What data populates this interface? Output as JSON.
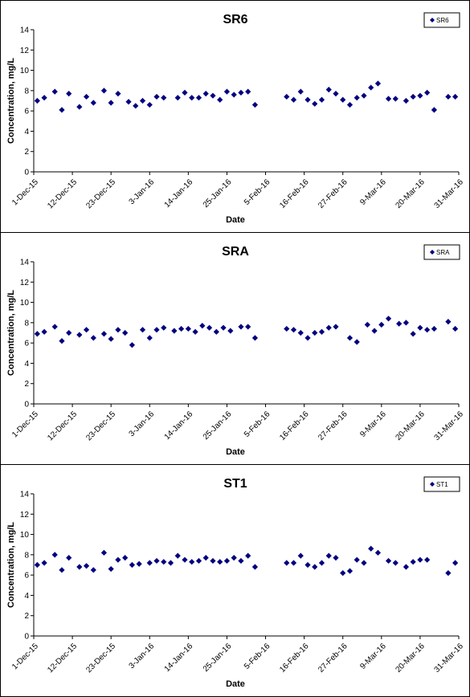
{
  "chart_data": [
    {
      "type": "scatter",
      "title": "SR6",
      "xlabel": "Date",
      "ylabel": "Concentration, mg/L",
      "legend": "SR6",
      "legend_position": "top-right",
      "ylim": [
        0,
        14
      ],
      "yticks": [
        "0",
        "2",
        "4",
        "6",
        "8",
        "10",
        "12",
        "14"
      ],
      "xticks": [
        "1-Dec-15",
        "12-Dec-15",
        "23-Dec-15",
        "3-Jan-16",
        "14-Jan-16",
        "25-Jan-16",
        "5-Feb-16",
        "16-Feb-16",
        "27-Feb-16",
        "9-Mar-16",
        "20-Mar-16",
        "31-Mar-16"
      ],
      "x": [
        "2015-12-02",
        "2015-12-04",
        "2015-12-07",
        "2015-12-09",
        "2015-12-11",
        "2015-12-14",
        "2015-12-16",
        "2015-12-18",
        "2015-12-21",
        "2015-12-23",
        "2015-12-25",
        "2015-12-28",
        "2015-12-30",
        "2016-01-01",
        "2016-01-03",
        "2016-01-05",
        "2016-01-07",
        "2016-01-11",
        "2016-01-13",
        "2016-01-15",
        "2016-01-17",
        "2016-01-19",
        "2016-01-21",
        "2016-01-23",
        "2016-01-25",
        "2016-01-27",
        "2016-01-29",
        "2016-01-31",
        "2016-02-02",
        "2016-02-11",
        "2016-02-13",
        "2016-02-15",
        "2016-02-17",
        "2016-02-19",
        "2016-02-21",
        "2016-02-23",
        "2016-02-25",
        "2016-02-27",
        "2016-02-29",
        "2016-03-02",
        "2016-03-04",
        "2016-03-06",
        "2016-03-08",
        "2016-03-11",
        "2016-03-13",
        "2016-03-16",
        "2016-03-18",
        "2016-03-20",
        "2016-03-22",
        "2016-03-24",
        "2016-03-28",
        "2016-03-30"
      ],
      "y": [
        7.0,
        7.3,
        7.9,
        6.1,
        7.7,
        6.4,
        7.4,
        6.8,
        8.0,
        6.8,
        7.7,
        6.9,
        6.5,
        7.0,
        6.6,
        7.4,
        7.3,
        7.3,
        7.8,
        7.3,
        7.3,
        7.7,
        7.5,
        7.1,
        7.9,
        7.6,
        7.8,
        7.9,
        6.6,
        7.4,
        7.1,
        7.9,
        7.1,
        6.7,
        7.1,
        8.1,
        7.7,
        7.1,
        6.6,
        7.3,
        7.5,
        8.3,
        8.7,
        7.2,
        7.2,
        7.0,
        7.4,
        7.5,
        7.8,
        6.1,
        7.4,
        7.4
      ]
    },
    {
      "type": "scatter",
      "title": "SRA",
      "xlabel": "Date",
      "ylabel": "Concentration, mg/L",
      "legend": "SRA",
      "legend_position": "top-right",
      "ylim": [
        0,
        14
      ],
      "yticks": [
        "0",
        "2",
        "4",
        "6",
        "8",
        "10",
        "12",
        "14"
      ],
      "xticks": [
        "1-Dec-15",
        "12-Dec-15",
        "23-Dec-15",
        "3-Jan-16",
        "14-Jan-16",
        "25-Jan-16",
        "5-Feb-16",
        "16-Feb-16",
        "27-Feb-16",
        "9-Mar-16",
        "20-Mar-16",
        "31-Mar-16"
      ],
      "x": [
        "2015-12-02",
        "2015-12-04",
        "2015-12-07",
        "2015-12-09",
        "2015-12-11",
        "2015-12-14",
        "2015-12-16",
        "2015-12-18",
        "2015-12-21",
        "2015-12-23",
        "2015-12-25",
        "2015-12-27",
        "2015-12-29",
        "2016-01-01",
        "2016-01-03",
        "2016-01-05",
        "2016-01-07",
        "2016-01-10",
        "2016-01-12",
        "2016-01-14",
        "2016-01-16",
        "2016-01-18",
        "2016-01-20",
        "2016-01-22",
        "2016-01-24",
        "2016-01-26",
        "2016-01-29",
        "2016-01-31",
        "2016-02-02",
        "2016-02-11",
        "2016-02-13",
        "2016-02-15",
        "2016-02-17",
        "2016-02-19",
        "2016-02-21",
        "2016-02-23",
        "2016-02-25",
        "2016-02-29",
        "2016-03-02",
        "2016-03-05",
        "2016-03-07",
        "2016-03-09",
        "2016-03-11",
        "2016-03-14",
        "2016-03-16",
        "2016-03-18",
        "2016-03-20",
        "2016-03-22",
        "2016-03-24",
        "2016-03-28",
        "2016-03-30"
      ],
      "y": [
        6.9,
        7.1,
        7.6,
        6.2,
        7.0,
        6.8,
        7.3,
        6.5,
        6.9,
        6.4,
        7.3,
        7.0,
        5.8,
        7.3,
        6.5,
        7.3,
        7.5,
        7.2,
        7.4,
        7.4,
        7.1,
        7.7,
        7.5,
        7.1,
        7.5,
        7.2,
        7.6,
        7.6,
        6.5,
        7.4,
        7.3,
        7.0,
        6.5,
        7.0,
        7.1,
        7.5,
        7.6,
        6.5,
        6.1,
        7.8,
        7.2,
        7.8,
        8.4,
        7.9,
        8.0,
        6.9,
        7.5,
        7.3,
        7.4,
        8.1,
        7.4
      ]
    },
    {
      "type": "scatter",
      "title": "ST1",
      "xlabel": "Date",
      "ylabel": "Concentration, mg/L",
      "legend": "ST1",
      "legend_position": "top-right",
      "ylim": [
        0,
        14
      ],
      "yticks": [
        "0",
        "2",
        "4",
        "6",
        "8",
        "10",
        "12",
        "14"
      ],
      "xticks": [
        "1-Dec-15",
        "12-Dec-15",
        "23-Dec-15",
        "3-Jan-16",
        "14-Jan-16",
        "25-Jan-16",
        "5-Feb-16",
        "16-Feb-16",
        "27-Feb-16",
        "9-Mar-16",
        "20-Mar-16",
        "31-Mar-16"
      ],
      "x": [
        "2015-12-02",
        "2015-12-04",
        "2015-12-07",
        "2015-12-09",
        "2015-12-11",
        "2015-12-14",
        "2015-12-16",
        "2015-12-18",
        "2015-12-21",
        "2015-12-23",
        "2015-12-25",
        "2015-12-27",
        "2015-12-29",
        "2015-12-31",
        "2016-01-03",
        "2016-01-05",
        "2016-01-07",
        "2016-01-09",
        "2016-01-11",
        "2016-01-13",
        "2016-01-15",
        "2016-01-17",
        "2016-01-19",
        "2016-01-21",
        "2016-01-23",
        "2016-01-25",
        "2016-01-27",
        "2016-01-29",
        "2016-01-31",
        "2016-02-02",
        "2016-02-11",
        "2016-02-13",
        "2016-02-15",
        "2016-02-17",
        "2016-02-19",
        "2016-02-21",
        "2016-02-23",
        "2016-02-25",
        "2016-02-27",
        "2016-02-29",
        "2016-03-02",
        "2016-03-04",
        "2016-03-06",
        "2016-03-08",
        "2016-03-11",
        "2016-03-13",
        "2016-03-16",
        "2016-03-18",
        "2016-03-20",
        "2016-03-22",
        "2016-03-28",
        "2016-03-30"
      ],
      "y": [
        7.0,
        7.2,
        8.0,
        6.5,
        7.7,
        6.8,
        6.9,
        6.5,
        8.2,
        6.6,
        7.5,
        7.7,
        7.0,
        7.1,
        7.2,
        7.4,
        7.3,
        7.2,
        7.9,
        7.5,
        7.3,
        7.4,
        7.7,
        7.4,
        7.3,
        7.4,
        7.7,
        7.4,
        7.9,
        6.8,
        7.2,
        7.2,
        7.9,
        7.0,
        6.8,
        7.2,
        7.9,
        7.7,
        6.2,
        6.4,
        7.5,
        7.2,
        8.6,
        8.2,
        7.4,
        7.2,
        6.8,
        7.3,
        7.5,
        7.5,
        6.2,
        7.2
      ]
    }
  ],
  "colors": {
    "marker": "#000080",
    "axis": "#000000",
    "background": "#ffffff"
  },
  "legend_icon": "diamond-icon"
}
